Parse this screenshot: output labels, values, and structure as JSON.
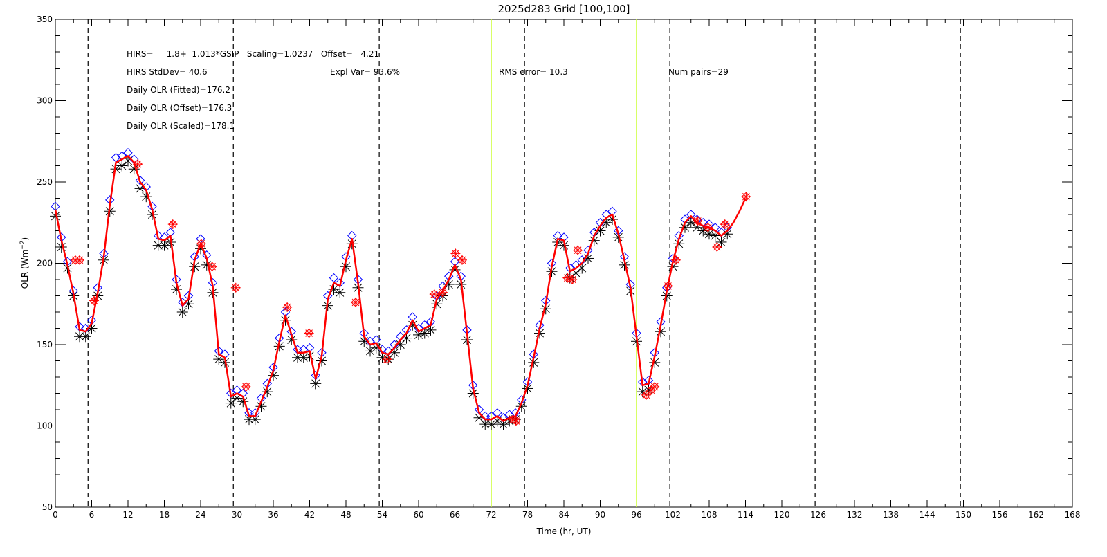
{
  "chart_data": {
    "type": "line",
    "title": "2025d283 Grid [100,100]",
    "xlabel": "Time (hr, UT)",
    "ylabel": "OLR (Wm",
    "ylabel_sup": "−2",
    "ylabel_close": ")",
    "xlim": [
      0,
      168
    ],
    "ylim": [
      50,
      350
    ],
    "x_ticks": [
      0,
      6,
      12,
      18,
      24,
      30,
      36,
      42,
      48,
      54,
      60,
      66,
      72,
      78,
      84,
      90,
      96,
      102,
      108,
      114,
      120,
      126,
      132,
      138,
      144,
      150,
      156,
      162,
      168
    ],
    "y_ticks": [
      50,
      100,
      150,
      200,
      250,
      300,
      350
    ],
    "grid": false,
    "vlines_dashed": [
      5.4,
      29.4,
      53.5,
      77.5,
      101.5,
      125.5,
      149.5
    ],
    "vlines_green": [
      72,
      96
    ],
    "annotations": {
      "line1": "HIRS=     1.8+  1.013*GSIP   Scaling=1.0237   Offset=   4.21",
      "line2": "HIRS StdDev= 40.6",
      "line3": "Daily OLR (Fitted)=176.2",
      "line4": "Daily OLR (Offset)=176.3",
      "line5": "Daily OLR (Scaled)=178.1",
      "expl_var": "Expl Var= 93.6%",
      "rms": "RMS error= 10.3",
      "num_pairs": "Num pairs=29"
    },
    "colors": {
      "fitted_line": "#ff0000",
      "gsip_diamonds": "#0000ff",
      "asterisks": "#000000",
      "hirs_points": "#ff0000",
      "dashed_lines": "#000000",
      "green_lines": "#ccff33"
    },
    "series": [
      {
        "marker": "line",
        "x": [
          0,
          1,
          2,
          3,
          4,
          5,
          6,
          7,
          8,
          9,
          10,
          11,
          12,
          13,
          14,
          15,
          16,
          17,
          18,
          19,
          20,
          21,
          22,
          23,
          24,
          25,
          26,
          27,
          28,
          29,
          30,
          31,
          32,
          33,
          34,
          35,
          36,
          37,
          38,
          39,
          40,
          41,
          42,
          43,
          44,
          45,
          46,
          47,
          48,
          49,
          50,
          51,
          52,
          53,
          54,
          55,
          56,
          57,
          58,
          59,
          60,
          61,
          62,
          63,
          64,
          65,
          66,
          67,
          68,
          69,
          70,
          71,
          72,
          73,
          74,
          75,
          76,
          77,
          78,
          79,
          80,
          81,
          82,
          83,
          84,
          85,
          86,
          87,
          88,
          89,
          90,
          91,
          92,
          93,
          94,
          95,
          96,
          97,
          98,
          99,
          100,
          101,
          102,
          103,
          104,
          105,
          106,
          107,
          108,
          109,
          110,
          111,
          112,
          113,
          114
        ],
        "y": [
          233,
          214,
          199,
          181,
          159,
          158,
          163,
          182,
          204,
          236,
          262,
          264,
          266,
          262,
          250,
          245,
          233,
          215,
          214,
          217,
          188,
          174,
          178,
          202,
          212,
          203,
          186,
          144,
          142,
          118,
          120,
          118,
          106,
          106,
          115,
          124,
          134,
          152,
          168,
          156,
          145,
          145,
          146,
          129,
          143,
          178,
          188,
          186,
          202,
          215,
          188,
          155,
          150,
          151,
          145,
          144,
          148,
          153,
          157,
          165,
          158,
          160,
          162,
          178,
          183,
          190,
          199,
          190,
          157,
          123,
          108,
          104,
          104,
          106,
          103,
          105,
          106,
          114,
          125,
          142,
          160,
          175,
          198,
          215,
          214,
          195,
          197,
          200,
          206,
          217,
          223,
          228,
          230,
          218,
          202,
          185,
          155,
          125,
          126,
          143,
          162,
          183,
          201,
          215,
          225,
          229,
          225,
          223,
          222,
          220,
          217,
          220,
          225,
          232,
          240
        ]
      },
      {
        "marker": "diamond",
        "x": [
          0,
          1,
          2,
          3,
          4,
          5,
          6,
          7,
          8,
          9,
          10,
          11,
          12,
          13,
          14,
          15,
          16,
          17,
          18,
          19,
          20,
          21,
          22,
          23,
          24,
          25,
          26,
          27,
          28,
          29,
          30,
          31,
          32,
          33,
          34,
          35,
          36,
          37,
          38,
          39,
          40,
          41,
          42,
          43,
          44,
          45,
          46,
          47,
          48,
          49,
          50,
          51,
          52,
          53,
          54,
          55,
          56,
          57,
          58,
          59,
          60,
          61,
          62,
          63,
          64,
          65,
          66,
          67,
          68,
          69,
          70,
          71,
          72,
          73,
          74,
          75,
          76,
          77,
          78,
          79,
          80,
          81,
          82,
          83,
          84,
          85,
          86,
          87,
          88,
          89,
          90,
          91,
          92,
          93,
          94,
          95,
          96,
          97,
          98,
          99,
          100,
          101,
          102,
          103,
          104,
          105,
          106,
          107,
          108,
          109,
          110,
          111
        ],
        "y": [
          235,
          216,
          201,
          183,
          161,
          160,
          165,
          185,
          206,
          239,
          265,
          266,
          268,
          264,
          251,
          247,
          235,
          217,
          216,
          219,
          190,
          176,
          180,
          204,
          215,
          205,
          188,
          146,
          144,
          120,
          122,
          120,
          108,
          108,
          117,
          126,
          136,
          154,
          170,
          158,
          147,
          147,
          148,
          131,
          145,
          180,
          191,
          188,
          204,
          217,
          190,
          157,
          152,
          153,
          147,
          146,
          150,
          155,
          159,
          167,
          160,
          162,
          164,
          180,
          186,
          192,
          201,
          192,
          159,
          125,
          110,
          106,
          106,
          108,
          105,
          107,
          108,
          116,
          127,
          144,
          162,
          177,
          200,
          217,
          216,
          197,
          199,
          202,
          208,
          219,
          225,
          230,
          232,
          220,
          204,
          187,
          157,
          127,
          128,
          145,
          164,
          185,
          203,
          217,
          227,
          230,
          227,
          225,
          224,
          222,
          219,
          222
        ]
      },
      {
        "marker": "asterisk",
        "x": [
          0,
          1,
          2,
          3,
          4,
          5,
          6,
          7,
          8,
          9,
          10,
          11,
          12,
          13,
          14,
          15,
          16,
          17,
          18,
          19,
          20,
          21,
          22,
          23,
          24,
          25,
          26,
          27,
          28,
          29,
          30,
          31,
          32,
          33,
          34,
          35,
          36,
          37,
          38,
          39,
          40,
          41,
          42,
          43,
          44,
          45,
          46,
          47,
          48,
          49,
          50,
          51,
          52,
          53,
          54,
          55,
          56,
          57,
          58,
          59,
          60,
          61,
          62,
          63,
          64,
          65,
          66,
          67,
          68,
          69,
          70,
          71,
          72,
          73,
          74,
          75,
          76,
          77,
          78,
          79,
          80,
          81,
          82,
          83,
          84,
          85,
          86,
          87,
          88,
          89,
          90,
          91,
          92,
          93,
          94,
          95,
          96,
          97,
          98,
          99,
          100,
          101,
          102,
          103,
          104,
          105,
          106,
          107,
          108,
          109,
          110,
          111
        ],
        "y": [
          229,
          210,
          197,
          180,
          155,
          155,
          160,
          180,
          202,
          232,
          258,
          260,
          263,
          258,
          246,
          241,
          230,
          211,
          211,
          213,
          184,
          170,
          175,
          198,
          209,
          199,
          182,
          141,
          139,
          114,
          117,
          115,
          104,
          104,
          112,
          121,
          131,
          149,
          165,
          153,
          142,
          142,
          143,
          126,
          140,
          174,
          184,
          182,
          198,
          212,
          185,
          152,
          146,
          148,
          142,
          141,
          145,
          150,
          154,
          162,
          156,
          157,
          159,
          175,
          180,
          187,
          196,
          187,
          153,
          120,
          105,
          101,
          101,
          103,
          101,
          103,
          104,
          112,
          123,
          139,
          157,
          172,
          195,
          213,
          211,
          191,
          194,
          197,
          203,
          214,
          220,
          225,
          227,
          216,
          199,
          183,
          152,
          121,
          122,
          139,
          158,
          180,
          198,
          212,
          222,
          225,
          222,
          220,
          218,
          217,
          213,
          218
        ]
      },
      {
        "marker": "red-asterisk-diamond",
        "x": [
          3.3,
          4.0,
          6.4,
          13.6,
          19.4,
          24.1,
          25.9,
          29.8,
          31.5,
          38.3,
          41.9,
          49.6,
          54.8,
          62.6,
          64.0,
          66.1,
          67.2,
          75.6,
          76.1,
          84.6,
          85.4,
          86.3,
          97.6,
          98.4,
          99.0,
          101.2,
          102.5,
          106.1,
          107.8,
          109.3,
          110.6,
          114.1
        ],
        "y": [
          202,
          202,
          177,
          261,
          224,
          212,
          198,
          185,
          124,
          173,
          157,
          176,
          141,
          181,
          182,
          206,
          202,
          104,
          103,
          191,
          190,
          208,
          119,
          122,
          124,
          186,
          202,
          226,
          222,
          210,
          224,
          241
        ]
      }
    ]
  }
}
